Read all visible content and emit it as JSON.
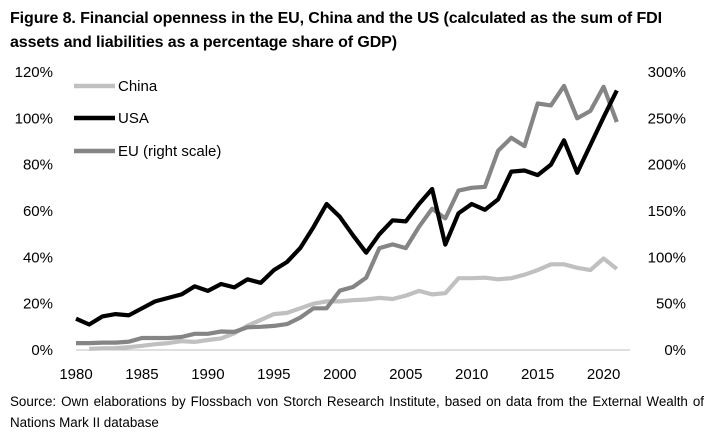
{
  "figure": {
    "title": "Figure 8. Financial openness in the EU, China and the US (calculated as the sum of FDI assets and liabilities as a percentage share of GDP)",
    "source": "Source: Own elaborations by Flossbach von Storch Research Institute, based on data from the External Wealth of Nations Mark II database"
  },
  "chart_data": {
    "type": "line",
    "title": "Figure 8. Financial openness in the EU, China and the US (calculated as the sum of FDI assets and liabilities as a percentage share of GDP)",
    "x_ticks": [
      "1980",
      "1985",
      "1990",
      "1995",
      "2000",
      "2005",
      "2010",
      "2015",
      "2020"
    ],
    "x_tick_values": [
      1980,
      1985,
      1990,
      1995,
      2000,
      2005,
      2010,
      2015,
      2020
    ],
    "xlim": [
      1980,
      2022
    ],
    "left_axis": {
      "ylim": [
        0,
        120
      ],
      "ticks": [
        "0%",
        "20%",
        "40%",
        "60%",
        "80%",
        "100%",
        "120%"
      ],
      "tick_values": [
        0,
        20,
        40,
        60,
        80,
        100,
        120
      ]
    },
    "right_axis": {
      "ylim": [
        0,
        300
      ],
      "ticks": [
        "0%",
        "50%",
        "100%",
        "150%",
        "200%",
        "250%",
        "300%"
      ],
      "tick_values": [
        0,
        50,
        100,
        150,
        200,
        250,
        300
      ]
    },
    "legend_position": "top-left",
    "series": [
      {
        "name": "China",
        "axis": "left",
        "color": "#c0c0c0",
        "x": [
          1981,
          1982,
          1983,
          1984,
          1985,
          1986,
          1987,
          1988,
          1989,
          1990,
          1991,
          1992,
          1993,
          1994,
          1995,
          1996,
          1997,
          1998,
          1999,
          2000,
          2001,
          2002,
          2003,
          2004,
          2005,
          2006,
          2007,
          2008,
          2009,
          2010,
          2011,
          2012,
          2013,
          2014,
          2015,
          2016,
          2017,
          2018,
          2019,
          2020,
          2021
        ],
        "values": [
          0.5,
          0.7,
          0.8,
          1.2,
          1.8,
          2.5,
          3.0,
          3.8,
          3.5,
          4.3,
          5.0,
          7.2,
          10.5,
          13.0,
          15.5,
          16.0,
          18.0,
          20.0,
          21.0,
          21.0,
          21.5,
          21.8,
          22.5,
          22.0,
          23.5,
          25.5,
          24.0,
          24.5,
          31.0,
          31.0,
          31.2,
          30.5,
          31.0,
          32.5,
          34.5,
          37.0,
          37.0,
          35.5,
          34.5,
          39.5,
          35.0
        ]
      },
      {
        "name": "USA",
        "axis": "left",
        "color": "#000000",
        "x": [
          1980,
          1981,
          1982,
          1983,
          1984,
          1985,
          1986,
          1987,
          1988,
          1989,
          1990,
          1991,
          1992,
          1993,
          1994,
          1995,
          1996,
          1997,
          1998,
          1999,
          2000,
          2001,
          2002,
          2003,
          2004,
          2005,
          2006,
          2007,
          2008,
          2009,
          2010,
          2011,
          2012,
          2013,
          2014,
          2015,
          2016,
          2017,
          2018,
          2019,
          2020,
          2021
        ],
        "values": [
          13.5,
          11.0,
          14.5,
          15.5,
          15.0,
          18.0,
          21.0,
          22.5,
          24.0,
          27.5,
          25.5,
          28.5,
          27.0,
          30.5,
          29.0,
          34.5,
          38.0,
          44.0,
          53.0,
          63.0,
          57.5,
          49.5,
          42.0,
          50.0,
          56.0,
          55.5,
          63.0,
          69.5,
          45.5,
          59.0,
          63.0,
          60.5,
          65.0,
          77.0,
          77.5,
          75.5,
          80.0,
          90.5,
          76.5,
          88.5,
          100.5,
          112.0
        ]
      },
      {
        "name": "EU (right scale)",
        "axis": "right",
        "color": "#858585",
        "x": [
          1980,
          1981,
          1982,
          1983,
          1984,
          1985,
          1986,
          1987,
          1988,
          1989,
          1990,
          1991,
          1992,
          1993,
          1994,
          1995,
          1996,
          1997,
          1998,
          1999,
          2000,
          2001,
          2002,
          2003,
          2004,
          2005,
          2006,
          2007,
          2008,
          2009,
          2010,
          2011,
          2012,
          2013,
          2014,
          2015,
          2016,
          2017,
          2018,
          2019,
          2020,
          2021
        ],
        "values": [
          7.5,
          7.5,
          8.0,
          8.0,
          9.0,
          13.0,
          13.0,
          13.0,
          14.0,
          17.5,
          17.5,
          20.0,
          19.5,
          24.5,
          25.0,
          26.0,
          28.0,
          35.0,
          45.0,
          45.0,
          64.0,
          68.0,
          78.0,
          110.0,
          114.0,
          110.0,
          133.0,
          152.5,
          142.0,
          172.0,
          175.0,
          176.0,
          215.0,
          229.0,
          220.0,
          266.0,
          264.0,
          285.0,
          250.0,
          258.0,
          284.0,
          246.0
        ]
      }
    ]
  }
}
